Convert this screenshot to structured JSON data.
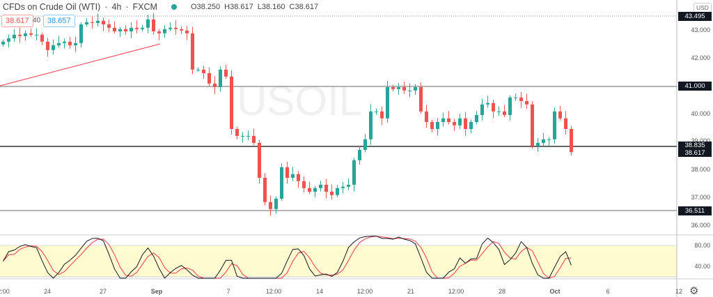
{
  "header": {
    "symbol": "CFDs on Crude Oil (WTI)",
    "interval": "4h",
    "exchange": "FXCM",
    "separator": "·",
    "open": "O38.250",
    "high": "H38.617",
    "low": "L38.160",
    "close": "C38.617"
  },
  "bid": "38.617",
  "spread": "40",
  "ask": "38.657",
  "currency": "USD",
  "watermark": "USOIL",
  "price_axis": [
    "43.000",
    "42.000",
    "40.000",
    "39.000",
    "38.000",
    "37.000",
    "36.000"
  ],
  "price_tags": {
    "high_line": "43.495",
    "resistance": "41.000",
    "level": "38.835",
    "last": "38.617",
    "support": "36.511"
  },
  "osc_axis": [
    "80.00",
    "40.00"
  ],
  "time_axis": [
    "2:00",
    "24",
    "27",
    "Sep",
    "7",
    "12:00",
    "14",
    "12:00",
    "21",
    "12:00",
    "28",
    "Oct",
    "6",
    "12"
  ],
  "colors": {
    "up": "#26a69a",
    "down": "#ef5350",
    "trendline": "#f23645",
    "band": "#fffbd1",
    "k_line": "#131722",
    "d_line": "#f23645"
  },
  "closes": [
    42.58,
    42.7,
    42.83,
    42.78,
    42.88,
    42.83,
    42.83,
    42.58,
    42.28,
    42.45,
    42.53,
    42.58,
    42.45,
    42.53,
    43.2,
    43.28,
    43.25,
    43.33,
    43.2,
    43.08,
    42.95,
    43.03,
    42.95,
    43.08,
    43.03,
    43.08,
    43.38,
    42.95,
    42.88,
    43.03,
    43.08,
    43.03,
    42.98,
    42.88,
    41.58,
    41.58,
    41.45,
    41.08,
    40.95,
    41.58,
    41.33,
    39.45,
    39.2,
    39.2,
    39.2,
    38.95,
    37.7,
    36.83,
    36.58,
    36.95,
    38.08,
    37.7,
    37.83,
    37.58,
    37.33,
    37.2,
    37.33,
    37.45,
    37.2,
    37.08,
    37.33,
    37.38,
    37.45,
    38.33,
    38.7,
    39.08,
    40.08,
    40.08,
    39.83,
    40.95,
    40.88,
    40.95,
    40.83,
    40.83,
    40.95,
    40.08,
    39.7,
    39.45,
    39.7,
    39.83,
    39.7,
    39.58,
    39.83,
    39.45,
    39.7,
    39.95,
    40.33,
    40.38,
    40.08,
    40.08,
    39.95,
    40.58,
    40.58,
    40.45,
    40.33,
    38.83,
    38.95,
    39.08,
    39.08,
    40.08,
    39.83,
    39.45,
    38.62
  ]
}
